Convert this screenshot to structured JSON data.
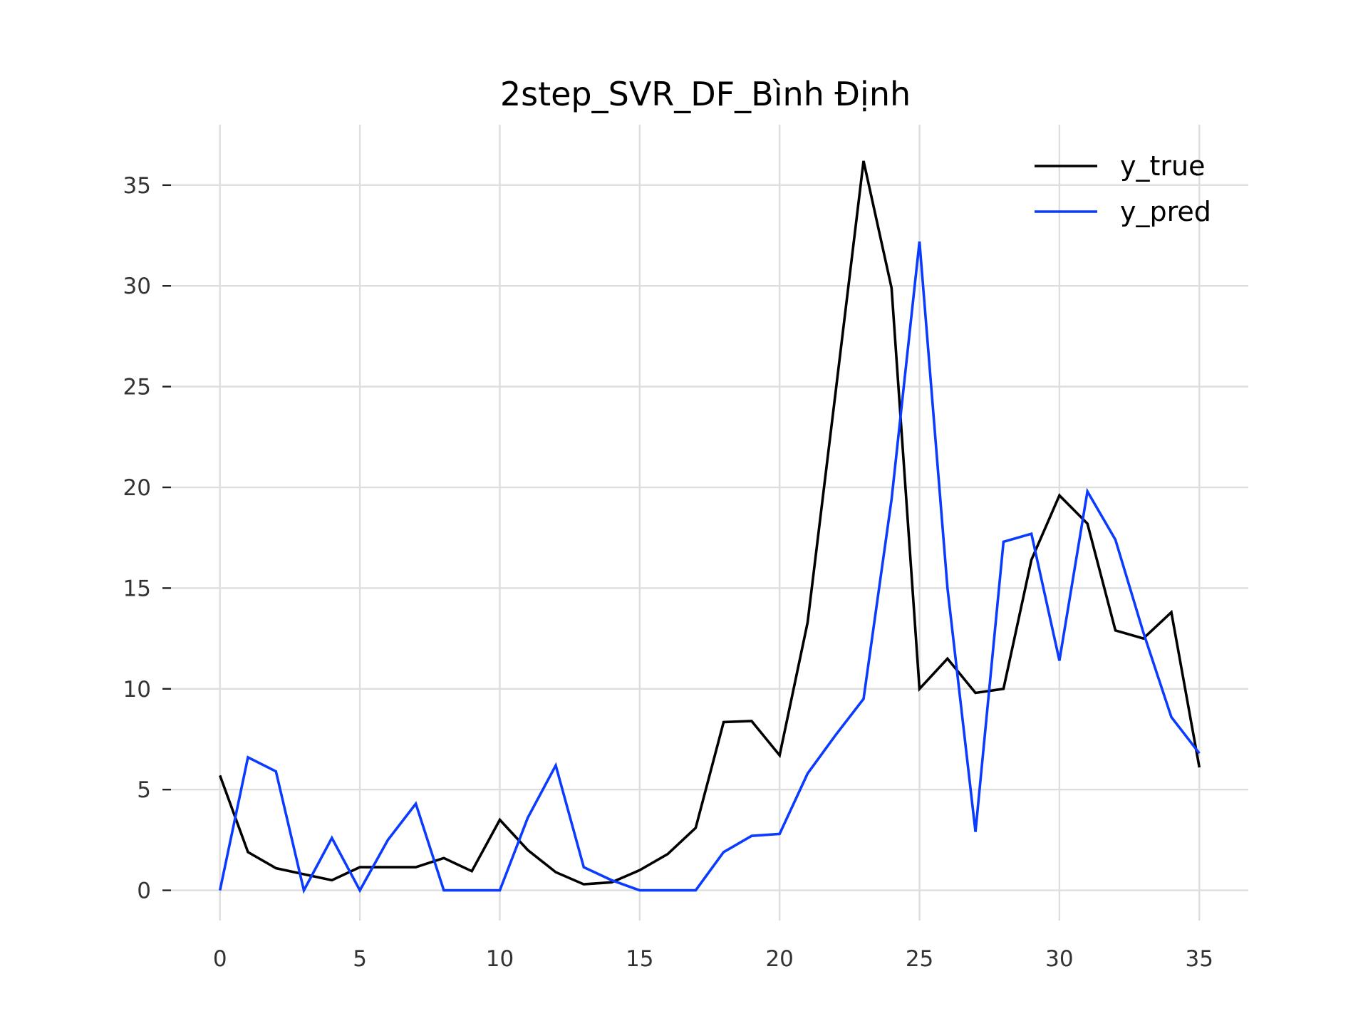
{
  "chart_data": {
    "type": "line",
    "title": "2step_SVR_DF_Bình Định",
    "xlabel": "",
    "ylabel": "",
    "xlim": [
      -1.75,
      36.75
    ],
    "ylim": [
      -1.5,
      38
    ],
    "xticks": [
      0,
      5,
      10,
      15,
      20,
      25,
      30,
      35
    ],
    "yticks": [
      0,
      5,
      10,
      15,
      20,
      25,
      30,
      35
    ],
    "grid": true,
    "legend_position": "top-right",
    "x": [
      0,
      1,
      2,
      3,
      4,
      5,
      6,
      7,
      8,
      9,
      10,
      11,
      12,
      13,
      14,
      15,
      16,
      17,
      18,
      19,
      20,
      21,
      22,
      23,
      24,
      25,
      26,
      27,
      28,
      29,
      30,
      31,
      32,
      33,
      34,
      35
    ],
    "series": [
      {
        "name": "y_true",
        "color": "#000000",
        "values": [
          5.7,
          1.9,
          1.1,
          0.8,
          0.5,
          1.15,
          1.15,
          1.15,
          1.6,
          0.95,
          3.5,
          2.0,
          0.9,
          0.3,
          0.4,
          1.0,
          1.8,
          3.1,
          8.35,
          8.4,
          6.7,
          13.3,
          24.7,
          36.2,
          29.9,
          10.0,
          11.5,
          9.8,
          10.0,
          16.4,
          19.6,
          18.2,
          12.9,
          12.5,
          13.8,
          6.1
        ]
      },
      {
        "name": "y_pred",
        "color": "#0a3bff",
        "values": [
          0.0,
          6.6,
          5.9,
          0.0,
          2.6,
          0.0,
          2.5,
          4.3,
          0.0,
          0.0,
          0.0,
          3.6,
          6.2,
          1.15,
          0.5,
          0.0,
          0.0,
          0.0,
          1.9,
          2.7,
          2.8,
          5.8,
          7.7,
          9.5,
          19.4,
          32.2,
          15.0,
          2.9,
          17.3,
          17.7,
          11.4,
          19.8,
          17.4,
          12.8,
          8.6,
          6.8
        ]
      }
    ]
  }
}
